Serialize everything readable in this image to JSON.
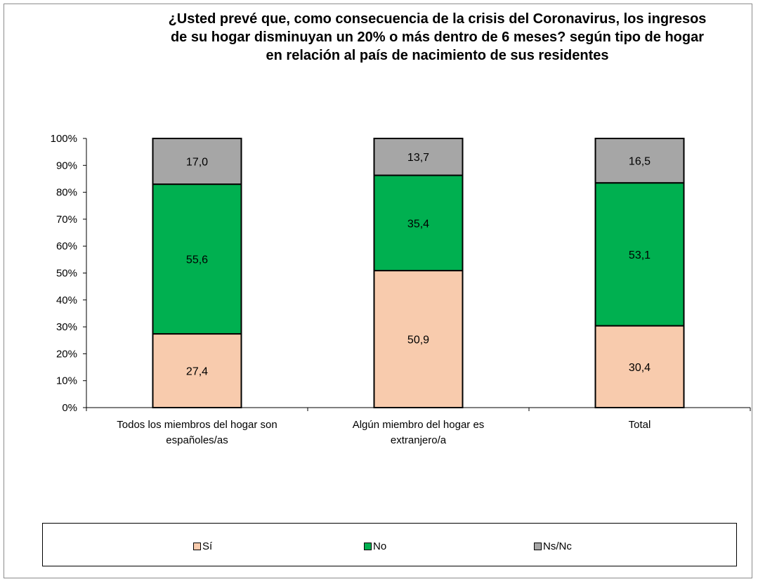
{
  "chart_data": {
    "type": "bar",
    "stacked": true,
    "title_lines": [
      "¿Usted prevé que, como consecuencia de la crisis del Coronavirus, los ingresos",
      "de su hogar disminuyan un 20% o más dentro de 6 meses? según tipo de hogar",
      "en relación al país de nacimiento de sus residentes"
    ],
    "categories": [
      [
        "Todos los miembros del hogar son",
        "españoles/as"
      ],
      [
        "Algún miembro del hogar es",
        "extranjero/a"
      ],
      [
        "Total"
      ]
    ],
    "series": [
      {
        "name": "Sí",
        "color": "#f8cbad",
        "values": [
          27.4,
          50.9,
          30.4
        ],
        "labels": [
          "27,4",
          "50,9",
          "30,4"
        ]
      },
      {
        "name": "No",
        "color": "#00b050",
        "values": [
          55.6,
          35.4,
          53.1
        ],
        "labels": [
          "55,6",
          "35,4",
          "53,1"
        ]
      },
      {
        "name": "Ns/Nc",
        "color": "#a6a6a6",
        "values": [
          17.0,
          13.7,
          16.5
        ],
        "labels": [
          "17,0",
          "13,7",
          "16,5"
        ]
      }
    ],
    "y_ticks": [
      "0%",
      "10%",
      "20%",
      "30%",
      "40%",
      "50%",
      "60%",
      "70%",
      "80%",
      "90%",
      "100%"
    ],
    "ylim": [
      0,
      100
    ],
    "legend_position": "bottom",
    "grid": false
  }
}
